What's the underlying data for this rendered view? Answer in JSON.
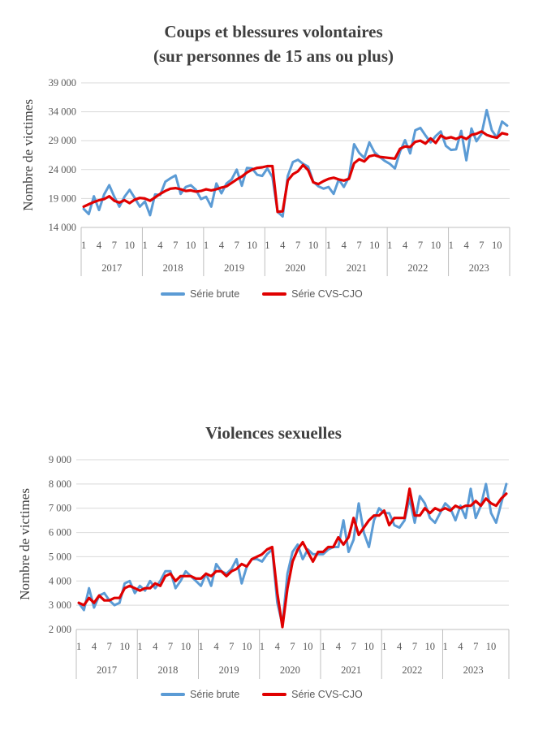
{
  "colors": {
    "brute": "#5b9bd5",
    "cvs": "#e00000",
    "grid": "#d9d9d9",
    "axis": "#bfbfbf"
  },
  "legend": {
    "brute": "Série brute",
    "cvs": "Série CVS-CJO"
  },
  "month_tick_labels": [
    "1",
    "4",
    "7",
    "10"
  ],
  "years": [
    "2017",
    "2018",
    "2019",
    "2020",
    "2021",
    "2022",
    "2023"
  ],
  "chart_data": [
    {
      "type": "line",
      "title_line1": "Coups et blessures volontaires",
      "title_line2": "(sur personnes de 15 ans ou plus)",
      "ylabel": "Nombre de victimes",
      "ylim": [
        14000,
        39000
      ],
      "yticks": [
        14000,
        19000,
        24000,
        29000,
        34000,
        39000
      ],
      "ytick_labels": [
        "14 000",
        "19 000",
        "24 000",
        "29 000",
        "34 000",
        "39 000"
      ],
      "grid": true,
      "x_start": "2017-01",
      "series": [
        {
          "name": "Série brute",
          "values": [
            17200,
            16300,
            19400,
            17000,
            19700,
            21300,
            19300,
            17600,
            19300,
            20500,
            19100,
            17600,
            18500,
            16100,
            19700,
            19600,
            21900,
            22500,
            23000,
            19800,
            21000,
            21300,
            20500,
            18900,
            19300,
            17600,
            21600,
            19900,
            21600,
            22300,
            24000,
            21200,
            24300,
            24200,
            23100,
            22900,
            24200,
            22700,
            16700,
            15900,
            22900,
            25300,
            25700,
            25000,
            24500,
            21900,
            21100,
            20700,
            21000,
            19800,
            22300,
            21000,
            22700,
            28400,
            26900,
            26000,
            28700,
            27000,
            26200,
            25500,
            25000,
            24200,
            27100,
            29100,
            26800,
            30800,
            31200,
            29900,
            28700,
            29800,
            30600,
            28100,
            27400,
            27500,
            30700,
            25600,
            31100,
            28900,
            30200,
            34300,
            30800,
            29500,
            32300,
            31600
          ]
        },
        {
          "name": "Série CVS-CJO",
          "values": [
            17600,
            18000,
            18400,
            18700,
            18900,
            19400,
            18600,
            18300,
            18700,
            18200,
            18800,
            19100,
            19000,
            18600,
            19200,
            19800,
            20300,
            20700,
            20800,
            20600,
            20300,
            20400,
            20200,
            20300,
            20600,
            20400,
            20600,
            20900,
            21100,
            21700,
            22300,
            22800,
            23500,
            24000,
            24300,
            24400,
            24600,
            24600,
            16700,
            16800,
            22100,
            23200,
            23700,
            24800,
            23900,
            21800,
            21500,
            22000,
            22400,
            22600,
            22300,
            22100,
            22400,
            25100,
            25800,
            25400,
            26300,
            26500,
            26200,
            26100,
            26000,
            25900,
            27600,
            28000,
            27900,
            28800,
            29000,
            28500,
            29400,
            28600,
            29900,
            29400,
            29600,
            29300,
            29700,
            29300,
            30000,
            30200,
            30600,
            30000,
            29700,
            29500,
            30300,
            30100
          ]
        }
      ]
    },
    {
      "type": "line",
      "title_line1": "Violences sexuelles",
      "ylabel": "Nombre de victimes",
      "ylim": [
        2000,
        9000
      ],
      "yticks": [
        2000,
        3000,
        4000,
        5000,
        6000,
        7000,
        8000,
        9000
      ],
      "ytick_labels": [
        "2 000",
        "3 000",
        "4 000",
        "5 000",
        "6 000",
        "7 000",
        "8 000",
        "9 000"
      ],
      "grid": true,
      "x_start": "2017-01",
      "series": [
        {
          "name": "Série brute",
          "values": [
            3100,
            2800,
            3700,
            2900,
            3400,
            3500,
            3200,
            3000,
            3100,
            3900,
            4000,
            3500,
            3800,
            3600,
            4000,
            3700,
            4000,
            4400,
            4400,
            3700,
            4000,
            4400,
            4200,
            4000,
            3800,
            4300,
            3800,
            4700,
            4400,
            4300,
            4500,
            4900,
            3900,
            4600,
            4900,
            4900,
            4800,
            5100,
            5300,
            3100,
            2200,
            4300,
            5200,
            5500,
            4900,
            5300,
            5100,
            5100,
            5100,
            5300,
            5400,
            5400,
            6500,
            5200,
            5700,
            7200,
            6000,
            5400,
            6500,
            7000,
            6800,
            6800,
            6300,
            6200,
            6500,
            7400,
            6400,
            7500,
            7200,
            6600,
            6400,
            6800,
            7200,
            7000,
            6500,
            7100,
            6600,
            7800,
            6600,
            7100,
            8000,
            6800,
            6400,
            7200,
            8000
          ]
        },
        {
          "name": "Série CVS-CJO",
          "values": [
            3100,
            3000,
            3300,
            3100,
            3400,
            3200,
            3200,
            3300,
            3300,
            3700,
            3800,
            3700,
            3600,
            3700,
            3700,
            3900,
            3800,
            4200,
            4300,
            4000,
            4200,
            4200,
            4200,
            4100,
            4100,
            4300,
            4200,
            4400,
            4400,
            4200,
            4400,
            4500,
            4700,
            4600,
            4900,
            5000,
            5100,
            5300,
            5400,
            3500,
            2100,
            3700,
            4800,
            5300,
            5600,
            5200,
            4800,
            5200,
            5200,
            5400,
            5400,
            5800,
            5500,
            5800,
            6600,
            5900,
            6200,
            6500,
            6700,
            6700,
            6900,
            6300,
            6600,
            6600,
            6600,
            7800,
            6700,
            6700,
            7000,
            6800,
            7000,
            6900,
            7000,
            6900,
            7100,
            7000,
            7100,
            7100,
            7300,
            7100,
            7400,
            7200,
            7100,
            7400,
            7600
          ]
        }
      ]
    }
  ]
}
